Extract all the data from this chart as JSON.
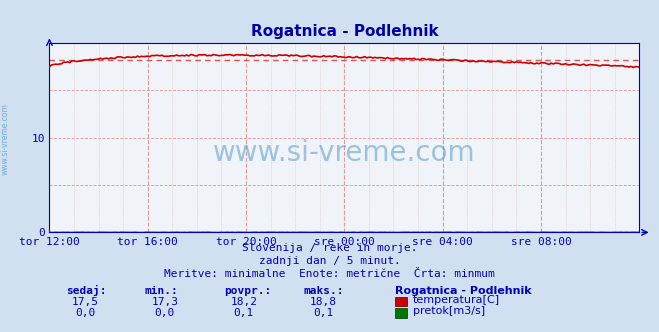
{
  "title": "Rogatnica - Podlehnik",
  "bg_color": "#d0e0f0",
  "plot_bg_color": "#f0f4f8",
  "x_labels": [
    "tor 12:00",
    "tor 16:00",
    "tor 20:00",
    "sre 00:00",
    "sre 04:00",
    "sre 08:00"
  ],
  "x_ticks": [
    0,
    48,
    96,
    144,
    192,
    240
  ],
  "x_minor_ticks": [
    12,
    24,
    36,
    60,
    72,
    84,
    108,
    120,
    132,
    156,
    168,
    180,
    204,
    216,
    228,
    252,
    264,
    276
  ],
  "x_max": 288,
  "y_min": 0,
  "y_max": 20,
  "y_ticks": [
    0,
    10
  ],
  "temp_min": 17.3,
  "temp_max": 18.8,
  "temp_avg": 18.2,
  "temp_current": 17.5,
  "flow_min": 0.0,
  "flow_max": 0.1,
  "flow_avg": 0.1,
  "flow_current": 0.0,
  "line_color_temp": "#cc0000",
  "line_color_flow": "#006600",
  "dashed_line_color": "#dd4444",
  "grid_color_major": "#dd9999",
  "grid_color_minor": "#ddbbbb",
  "axis_color": "#0000bb",
  "text_color": "#0000bb",
  "watermark": "www.si-vreme.com",
  "watermark_color": "#5599cc",
  "sidebar_text": "www.si-vreme.com",
  "footer_line1": "Slovenija / reke in morje.",
  "footer_line2": "zadnji dan / 5 minut.",
  "footer_line3": "Meritve: minimalne  Enote: metrične  Črta: minmum",
  "legend_title": "Rogatnica - Podlehnik",
  "legend_temp": "temperatura[C]",
  "legend_flow": "pretok[m3/s]",
  "label_sedaj": "sedaj:",
  "label_min": "min.:",
  "label_povpr": "povpr.:",
  "label_maks": "maks.:",
  "val_sedaj_temp": "17,5",
  "val_min_temp": "17,3",
  "val_povpr_temp": "18,2",
  "val_maks_temp": "18,8",
  "val_sedaj_flow": "0,0",
  "val_min_flow": "0,0",
  "val_povpr_flow": "0,1",
  "val_maks_flow": "0,1"
}
